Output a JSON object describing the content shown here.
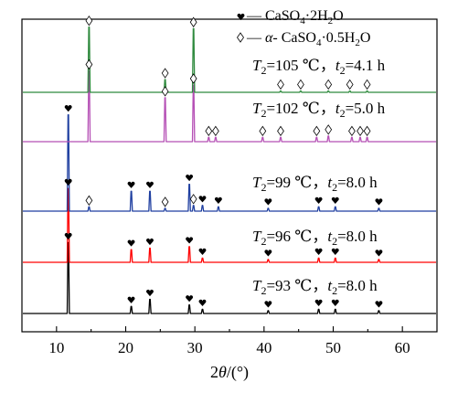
{
  "chart_data": {
    "type": "line",
    "chart_kind": "stacked XRD patterns",
    "xlabel": "2θ/(°)",
    "xlim": [
      5,
      65
    ],
    "x_ticks": [
      10,
      20,
      30,
      40,
      50,
      60
    ],
    "y_ticks_shown": false,
    "grid": false,
    "legend": {
      "placement": "top-right",
      "entries": [
        {
          "marker": "heart",
          "text": "— CaSO4·2H2O"
        },
        {
          "marker": "diamond",
          "text": "— α- CaSO4·0.5H2O"
        }
      ]
    },
    "series": [
      {
        "name": "T2=93 ℃，t2=8.0 h",
        "label_parts": {
          "T": "T",
          "sub": "2",
          "rest": "=93 ℃，",
          "t": "t",
          "tsub": "2",
          "trest": "=8.0 h"
        },
        "color": "#000000",
        "peaks": [
          {
            "x": 11.7,
            "h": 50,
            "marker": "heart"
          },
          {
            "x": 20.8,
            "h": 5,
            "marker": "heart"
          },
          {
            "x": 23.5,
            "h": 10,
            "marker": "heart"
          },
          {
            "x": 29.2,
            "h": 6,
            "marker": "heart"
          },
          {
            "x": 31.1,
            "h": 3,
            "marker": "heart"
          },
          {
            "x": 40.6,
            "h": 2,
            "marker": "heart"
          },
          {
            "x": 47.9,
            "h": 3,
            "marker": "heart"
          },
          {
            "x": 50.3,
            "h": 3,
            "marker": "heart"
          },
          {
            "x": 56.6,
            "h": 2,
            "marker": "heart"
          }
        ]
      },
      {
        "name": "T2=96 ℃，t2=8.0 h",
        "label_parts": {
          "T": "T",
          "sub": "2",
          "rest": "=96 ℃，",
          "t": "t",
          "tsub": "2",
          "trest": "=8.0 h"
        },
        "color": "#ff0000",
        "peaks": [
          {
            "x": 11.7,
            "h": 52,
            "marker": "heart"
          },
          {
            "x": 20.8,
            "h": 9,
            "marker": "heart"
          },
          {
            "x": 23.5,
            "h": 10,
            "marker": "heart"
          },
          {
            "x": 29.2,
            "h": 11,
            "marker": "heart"
          },
          {
            "x": 31.1,
            "h": 3,
            "marker": "heart"
          },
          {
            "x": 40.6,
            "h": 2,
            "marker": "heart"
          },
          {
            "x": 47.9,
            "h": 3,
            "marker": "heart"
          },
          {
            "x": 50.3,
            "h": 3,
            "marker": "heart"
          },
          {
            "x": 56.6,
            "h": 2,
            "marker": "heart"
          }
        ]
      },
      {
        "name": "T2=99 ℃，t2=8.0 h",
        "label_parts": {
          "T": "T",
          "sub": "2",
          "rest": "=99 ℃，",
          "t": "t",
          "tsub": "2",
          "trest": "=8.0 h"
        },
        "color": "#1f3fa0",
        "peaks": [
          {
            "x": 11.7,
            "h": 68,
            "marker": "heart"
          },
          {
            "x": 14.7,
            "h": 3,
            "marker": "diamond"
          },
          {
            "x": 20.8,
            "h": 14,
            "marker": "heart"
          },
          {
            "x": 23.5,
            "h": 14,
            "marker": "heart"
          },
          {
            "x": 25.7,
            "h": 2,
            "marker": "diamond"
          },
          {
            "x": 29.2,
            "h": 19,
            "marker": "heart"
          },
          {
            "x": 29.8,
            "h": 4,
            "marker": "diamond"
          },
          {
            "x": 31.1,
            "h": 4,
            "marker": "heart"
          },
          {
            "x": 33.4,
            "h": 3,
            "marker": "heart"
          },
          {
            "x": 40.6,
            "h": 2,
            "marker": "heart"
          },
          {
            "x": 47.9,
            "h": 3,
            "marker": "heart"
          },
          {
            "x": 50.3,
            "h": 3,
            "marker": "heart"
          },
          {
            "x": 56.6,
            "h": 2,
            "marker": "heart"
          }
        ]
      },
      {
        "name": "T2=102 ℃，t2=5.0 h",
        "label_parts": {
          "T": "T",
          "sub": "2",
          "rest": "=102 ℃，",
          "t": "t",
          "tsub": "2",
          "trest": "=5.0 h"
        },
        "color": "#b54fb5",
        "peaks": [
          {
            "x": 14.7,
            "h": 50,
            "marker": "diamond"
          },
          {
            "x": 25.7,
            "h": 31,
            "marker": "diamond"
          },
          {
            "x": 29.8,
            "h": 40,
            "marker": "diamond"
          },
          {
            "x": 32.0,
            "h": 3,
            "marker": "diamond"
          },
          {
            "x": 33.0,
            "h": 3,
            "marker": "diamond"
          },
          {
            "x": 39.8,
            "h": 3,
            "marker": "diamond"
          },
          {
            "x": 42.4,
            "h": 3,
            "marker": "diamond"
          },
          {
            "x": 47.6,
            "h": 3,
            "marker": "diamond"
          },
          {
            "x": 49.3,
            "h": 4,
            "marker": "diamond"
          },
          {
            "x": 52.7,
            "h": 3,
            "marker": "diamond"
          },
          {
            "x": 53.9,
            "h": 3,
            "marker": "diamond"
          },
          {
            "x": 54.9,
            "h": 3,
            "marker": "diamond"
          }
        ]
      },
      {
        "name": "T2=105 ℃，t2=4.1 h",
        "label_parts": {
          "T": "T",
          "sub": "2",
          "rest": "=105 ℃，",
          "t": "t",
          "tsub": "2",
          "trest": "=4.1 h"
        },
        "color": "#2f8a3e",
        "peaks": [
          {
            "x": 14.7,
            "h": 46,
            "marker": "diamond"
          },
          {
            "x": 25.7,
            "h": 9,
            "marker": "diamond"
          },
          {
            "x": 29.8,
            "h": 45,
            "marker": "diamond"
          },
          {
            "x": 42.4,
            "h": 1,
            "marker": "diamond"
          },
          {
            "x": 45.3,
            "h": 1,
            "marker": "diamond"
          },
          {
            "x": 49.3,
            "h": 1,
            "marker": "diamond"
          },
          {
            "x": 52.4,
            "h": 1,
            "marker": "diamond"
          },
          {
            "x": 54.9,
            "h": 1,
            "marker": "diamond"
          }
        ]
      }
    ]
  }
}
